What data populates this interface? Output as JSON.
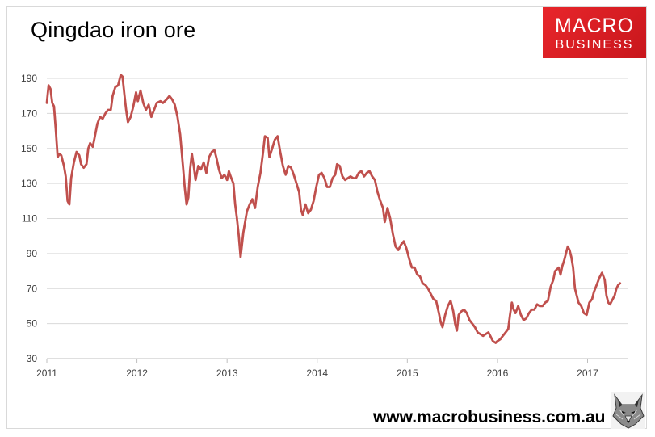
{
  "title": "Qingdao iron ore",
  "logo": {
    "line1": "MACRO",
    "line2": "BUSINESS"
  },
  "website": "www.macrobusiness.com.au",
  "colors": {
    "line": "#c0504d",
    "grid": "#d9d9d9",
    "logo": "#e2231a"
  },
  "icons": {
    "wolf": "wolf-icon"
  },
  "chart_data": {
    "type": "line",
    "title": "Qingdao iron ore",
    "xlabel": "",
    "ylabel": "",
    "ylim": [
      30,
      195
    ],
    "yticks": [
      30,
      50,
      70,
      90,
      110,
      130,
      150,
      170,
      190
    ],
    "xlim": [
      2011.0,
      2017.6
    ],
    "xticks": [
      "2011",
      "2012",
      "2013",
      "2014",
      "2015",
      "2016",
      "2017"
    ],
    "grid": true,
    "legend": "none",
    "series": [
      {
        "name": "",
        "points": [
          [
            2011.0,
            176
          ],
          [
            2011.02,
            186
          ],
          [
            2011.04,
            184
          ],
          [
            2011.06,
            176
          ],
          [
            2011.08,
            174
          ],
          [
            2011.1,
            160
          ],
          [
            2011.12,
            145
          ],
          [
            2011.14,
            147
          ],
          [
            2011.16,
            146
          ],
          [
            2011.19,
            140
          ],
          [
            2011.21,
            134
          ],
          [
            2011.23,
            120
          ],
          [
            2011.25,
            118
          ],
          [
            2011.27,
            133
          ],
          [
            2011.3,
            142
          ],
          [
            2011.33,
            148
          ],
          [
            2011.36,
            146
          ],
          [
            2011.38,
            141
          ],
          [
            2011.41,
            139
          ],
          [
            2011.44,
            141
          ],
          [
            2011.46,
            150
          ],
          [
            2011.48,
            153
          ],
          [
            2011.51,
            151
          ],
          [
            2011.53,
            156
          ],
          [
            2011.56,
            164
          ],
          [
            2011.59,
            168
          ],
          [
            2011.62,
            167
          ],
          [
            2011.65,
            170
          ],
          [
            2011.68,
            172
          ],
          [
            2011.71,
            172
          ],
          [
            2011.73,
            180
          ],
          [
            2011.76,
            185
          ],
          [
            2011.79,
            186
          ],
          [
            2011.82,
            192
          ],
          [
            2011.84,
            191
          ],
          [
            2011.86,
            181
          ],
          [
            2011.88,
            172
          ],
          [
            2011.9,
            165
          ],
          [
            2011.93,
            168
          ],
          [
            2011.96,
            174
          ],
          [
            2011.99,
            182
          ],
          [
            2012.01,
            177
          ],
          [
            2012.04,
            183
          ],
          [
            2012.07,
            176
          ],
          [
            2012.1,
            172
          ],
          [
            2012.13,
            175
          ],
          [
            2012.16,
            168
          ],
          [
            2012.19,
            172
          ],
          [
            2012.22,
            176
          ],
          [
            2012.26,
            177
          ],
          [
            2012.29,
            176
          ],
          [
            2012.33,
            178
          ],
          [
            2012.36,
            180
          ],
          [
            2012.39,
            178
          ],
          [
            2012.42,
            175
          ],
          [
            2012.45,
            168
          ],
          [
            2012.48,
            158
          ],
          [
            2012.51,
            140
          ],
          [
            2012.53,
            128
          ],
          [
            2012.55,
            118
          ],
          [
            2012.57,
            122
          ],
          [
            2012.59,
            138
          ],
          [
            2012.61,
            147
          ],
          [
            2012.63,
            140
          ],
          [
            2012.65,
            132
          ],
          [
            2012.68,
            140
          ],
          [
            2012.71,
            138
          ],
          [
            2012.74,
            142
          ],
          [
            2012.77,
            136
          ],
          [
            2012.8,
            145
          ],
          [
            2012.83,
            148
          ],
          [
            2012.86,
            149
          ],
          [
            2012.88,
            145
          ],
          [
            2012.91,
            138
          ],
          [
            2012.94,
            133
          ],
          [
            2012.97,
            135
          ],
          [
            2013.0,
            132
          ],
          [
            2013.02,
            137
          ],
          [
            2013.04,
            134
          ],
          [
            2013.07,
            130
          ],
          [
            2013.09,
            118
          ],
          [
            2013.11,
            110
          ],
          [
            2013.13,
            100
          ],
          [
            2013.15,
            88
          ],
          [
            2013.18,
            102
          ],
          [
            2013.2,
            108
          ],
          [
            2013.22,
            114
          ],
          [
            2013.25,
            118
          ],
          [
            2013.28,
            121
          ],
          [
            2013.31,
            116
          ],
          [
            2013.34,
            128
          ],
          [
            2013.37,
            136
          ],
          [
            2013.4,
            148
          ],
          [
            2013.42,
            157
          ],
          [
            2013.45,
            156
          ],
          [
            2013.47,
            145
          ],
          [
            2013.5,
            150
          ],
          [
            2013.53,
            155
          ],
          [
            2013.56,
            157
          ],
          [
            2013.59,
            148
          ],
          [
            2013.62,
            140
          ],
          [
            2013.65,
            135
          ],
          [
            2013.68,
            140
          ],
          [
            2013.71,
            139
          ],
          [
            2013.74,
            135
          ],
          [
            2013.77,
            130
          ],
          [
            2013.8,
            125
          ],
          [
            2013.82,
            115
          ],
          [
            2013.84,
            112
          ],
          [
            2013.87,
            118
          ],
          [
            2013.9,
            113
          ],
          [
            2013.93,
            115
          ],
          [
            2013.96,
            120
          ],
          [
            2013.99,
            128
          ],
          [
            2014.02,
            135
          ],
          [
            2014.05,
            136
          ],
          [
            2014.08,
            133
          ],
          [
            2014.11,
            128
          ],
          [
            2014.14,
            128
          ],
          [
            2014.17,
            133
          ],
          [
            2014.2,
            135
          ],
          [
            2014.22,
            141
          ],
          [
            2014.25,
            140
          ],
          [
            2014.28,
            134
          ],
          [
            2014.31,
            132
          ],
          [
            2014.34,
            133
          ],
          [
            2014.37,
            134
          ],
          [
            2014.4,
            133
          ],
          [
            2014.43,
            133
          ],
          [
            2014.46,
            136
          ],
          [
            2014.49,
            137
          ],
          [
            2014.52,
            134
          ],
          [
            2014.55,
            136
          ],
          [
            2014.58,
            137
          ],
          [
            2014.61,
            134
          ],
          [
            2014.64,
            132
          ],
          [
            2014.67,
            125
          ],
          [
            2014.7,
            120
          ],
          [
            2014.73,
            116
          ],
          [
            2014.75,
            108
          ],
          [
            2014.78,
            116
          ],
          [
            2014.81,
            110
          ],
          [
            2014.84,
            101
          ],
          [
            2014.87,
            94
          ],
          [
            2014.9,
            92
          ],
          [
            2014.93,
            95
          ],
          [
            2014.96,
            97
          ],
          [
            2014.99,
            93
          ],
          [
            2015.02,
            87
          ],
          [
            2015.05,
            82
          ],
          [
            2015.08,
            82
          ],
          [
            2015.11,
            78
          ],
          [
            2015.14,
            77
          ],
          [
            2015.17,
            73
          ],
          [
            2015.2,
            72
          ],
          [
            2015.23,
            70
          ],
          [
            2015.26,
            67
          ],
          [
            2015.29,
            64
          ],
          [
            2015.32,
            63
          ],
          [
            2015.35,
            56
          ],
          [
            2015.37,
            51
          ],
          [
            2015.39,
            48
          ],
          [
            2015.42,
            55
          ],
          [
            2015.45,
            60
          ],
          [
            2015.48,
            63
          ],
          [
            2015.51,
            57
          ],
          [
            2015.53,
            50
          ],
          [
            2015.55,
            46
          ],
          [
            2015.57,
            55
          ],
          [
            2015.6,
            57
          ],
          [
            2015.63,
            58
          ],
          [
            2015.66,
            56
          ],
          [
            2015.69,
            52
          ],
          [
            2015.72,
            50
          ],
          [
            2015.75,
            48
          ],
          [
            2015.78,
            45
          ],
          [
            2015.81,
            44
          ],
          [
            2015.84,
            43
          ],
          [
            2015.87,
            44
          ],
          [
            2015.9,
            45
          ],
          [
            2015.92,
            43
          ],
          [
            2015.95,
            40
          ],
          [
            2015.98,
            39
          ],
          [
            2016.0,
            40
          ],
          [
            2016.03,
            41
          ],
          [
            2016.06,
            43
          ],
          [
            2016.09,
            45
          ],
          [
            2016.12,
            47
          ],
          [
            2016.14,
            55
          ],
          [
            2016.16,
            62
          ],
          [
            2016.18,
            58
          ],
          [
            2016.2,
            56
          ],
          [
            2016.23,
            60
          ],
          [
            2016.26,
            55
          ],
          [
            2016.29,
            52
          ],
          [
            2016.32,
            53
          ],
          [
            2016.35,
            56
          ],
          [
            2016.38,
            58
          ],
          [
            2016.41,
            58
          ],
          [
            2016.44,
            61
          ],
          [
            2016.47,
            60
          ],
          [
            2016.5,
            60
          ],
          [
            2016.53,
            62
          ],
          [
            2016.56,
            63
          ],
          [
            2016.59,
            71
          ],
          [
            2016.62,
            75
          ],
          [
            2016.64,
            80
          ],
          [
            2016.66,
            81
          ],
          [
            2016.68,
            82
          ],
          [
            2016.7,
            78
          ],
          [
            2016.72,
            83
          ],
          [
            2016.74,
            86
          ],
          [
            2016.76,
            90
          ],
          [
            2016.78,
            94
          ],
          [
            2016.8,
            92
          ],
          [
            2016.82,
            88
          ],
          [
            2016.84,
            82
          ],
          [
            2016.86,
            70
          ],
          [
            2016.88,
            66
          ],
          [
            2016.9,
            62
          ],
          [
            2016.93,
            60
          ],
          [
            2016.96,
            56
          ],
          [
            2016.99,
            55
          ],
          [
            2017.02,
            62
          ],
          [
            2017.05,
            64
          ],
          [
            2017.07,
            68
          ],
          [
            2017.1,
            72
          ],
          [
            2017.13,
            76
          ],
          [
            2017.16,
            79
          ],
          [
            2017.19,
            75
          ],
          [
            2017.21,
            66
          ],
          [
            2017.23,
            62
          ],
          [
            2017.25,
            61
          ],
          [
            2017.27,
            63
          ],
          [
            2017.3,
            66
          ],
          [
            2017.32,
            70
          ],
          [
            2017.34,
            72
          ],
          [
            2017.36,
            73
          ]
        ]
      }
    ]
  }
}
